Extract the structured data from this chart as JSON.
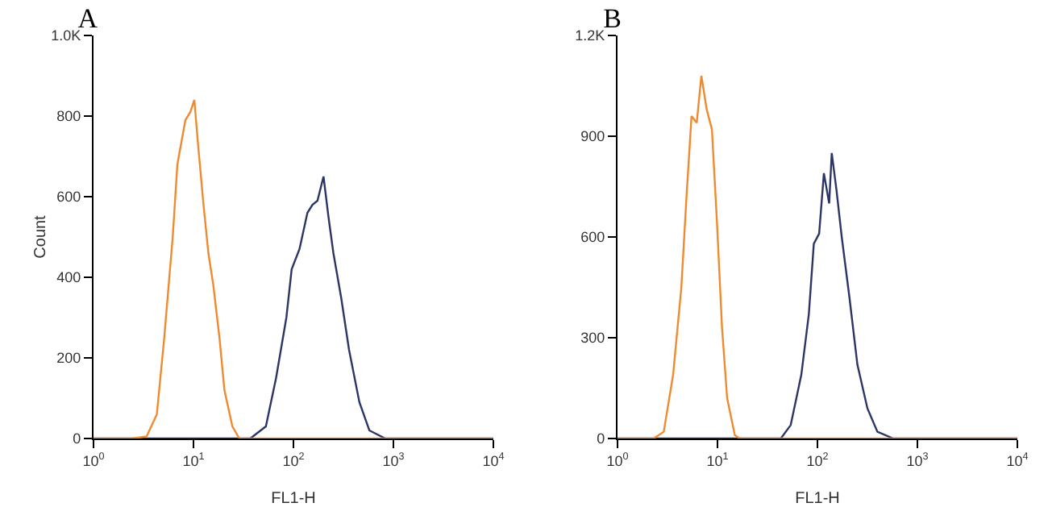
{
  "chart_data": [
    {
      "type": "line",
      "title": "A",
      "xlabel": "FL1-H",
      "ylabel": "Count",
      "log": "x",
      "xlim": [
        1,
        10000
      ],
      "ylim": [
        0,
        1000
      ],
      "xticks": [
        {
          "value": 1,
          "label": "10$^{0}$"
        },
        {
          "value": 10,
          "label": "10$^{1}$"
        },
        {
          "value": 100,
          "label": "10$^{2}$"
        },
        {
          "value": 1000,
          "label": "10$^{3}$"
        },
        {
          "value": 10000,
          "label": "10$^{4}$"
        }
      ],
      "yticks": [
        0,
        200,
        400,
        600,
        800,
        {
          "value": 1000,
          "label": "1.0K"
        }
      ],
      "grid": false,
      "marker": "none",
      "series": [
        {
          "color": "#2b3566",
          "x": [
            1,
            37,
            53,
            67,
            85,
            96,
            115,
            138,
            155,
            174,
            200,
            224,
            251,
            300,
            360,
            457,
            575,
            830,
            10000
          ],
          "values": [
            0,
            0,
            30,
            150,
            300,
            420,
            470,
            560,
            580,
            590,
            650,
            550,
            460,
            350,
            220,
            90,
            20,
            0,
            0
          ]
        },
        {
          "color": "#f08a30",
          "x": [
            1,
            2.4,
            3.4,
            4.3,
            5.1,
            6.2,
            6.9,
            8.3,
            9.3,
            10.2,
            11.2,
            12.6,
            14.1,
            15.8,
            18.2,
            20.4,
            24.5,
            28.8,
            10000
          ],
          "values": [
            0,
            0,
            5,
            60,
            250,
            500,
            680,
            790,
            810,
            840,
            720,
            580,
            460,
            380,
            250,
            120,
            30,
            0,
            0
          ]
        }
      ]
    },
    {
      "type": "line",
      "title": "B",
      "xlabel": "FL1-H",
      "log": "x",
      "xlim": [
        1,
        10000
      ],
      "ylim": [
        0,
        1200
      ],
      "xticks": [
        {
          "value": 1,
          "label": "10$^{0}$"
        },
        {
          "value": 10,
          "label": "10$^{1}$"
        },
        {
          "value": 100,
          "label": "10$^{2}$"
        },
        {
          "value": 1000,
          "label": "10$^{3}$"
        },
        {
          "value": 10000,
          "label": "10$^{4}$"
        }
      ],
      "yticks": [
        0,
        300,
        600,
        900,
        {
          "value": 1200,
          "label": "1.2K"
        }
      ],
      "grid": false,
      "marker": "none",
      "series": [
        {
          "color": "#2b3566",
          "x": [
            1,
            43,
            54,
            69,
            82,
            92,
            104,
            116,
            131,
            139,
            155,
            175,
            209,
            251,
            316,
            398,
            574,
            10000
          ],
          "values": [
            0,
            0,
            40,
            190,
            370,
            580,
            610,
            790,
            700,
            850,
            740,
            600,
            420,
            220,
            90,
            20,
            0,
            0
          ]
        },
        {
          "color": "#f08a30",
          "x": [
            1,
            2.3,
            2.9,
            3.6,
            4.35,
            4.9,
            5.5,
            6.2,
            6.9,
            7.8,
            8.8,
            9.9,
            11.1,
            12.5,
            14.9,
            16.7,
            10000
          ],
          "values": [
            0,
            0,
            20,
            190,
            450,
            720,
            960,
            940,
            1080,
            980,
            920,
            640,
            330,
            120,
            10,
            0,
            0
          ]
        }
      ]
    }
  ]
}
